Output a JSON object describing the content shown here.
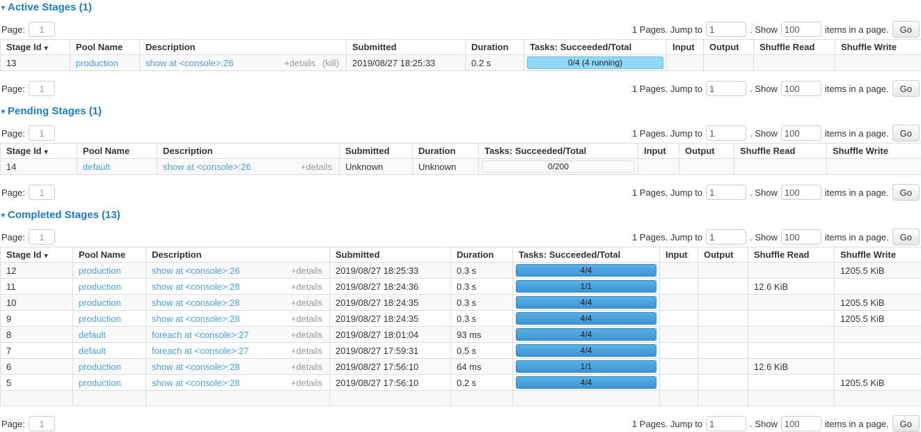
{
  "ui": {
    "caret": "▾"
  },
  "pagination": {
    "page_label": "Page:",
    "page_value": "1",
    "jump_text": "1 Pages. Jump to",
    "jump_value": "1",
    "show_text": ". Show",
    "show_value": "100",
    "items_text": "items in a page.",
    "go_label": "Go"
  },
  "column_keys": [
    "id",
    "pool",
    "description",
    "submitted",
    "duration",
    "tasks",
    "input",
    "output",
    "shuffle_read",
    "shuffle_write"
  ],
  "sections": [
    {
      "name": "active-stages",
      "title": "Active Stages (1)",
      "widths": [
        100,
        100,
        297,
        171,
        84,
        205,
        53,
        72,
        117,
        124
      ],
      "columns": [
        {
          "label": "Stage Id",
          "sort": "▾"
        },
        {
          "label": "Pool Name"
        },
        {
          "label": "Description"
        },
        {
          "label": "Submitted"
        },
        {
          "label": "Duration"
        },
        {
          "label": "Tasks: Succeeded/Total"
        },
        {
          "label": "Input"
        },
        {
          "label": "Output"
        },
        {
          "label": "Shuffle Read"
        },
        {
          "label": "Shuffle Write"
        }
      ],
      "rows": [
        {
          "id": "13",
          "pool": "production",
          "desc": "show at <console>:26",
          "details": "+details",
          "kill": "(kill)",
          "submitted": "2019/08/27 18:25:33",
          "duration": "0.2 s",
          "tasks": {
            "label": "0/4 (4 running)",
            "style": "running"
          },
          "input": "",
          "output": "",
          "shuffle_read": "",
          "shuffle_write": ""
        }
      ]
    },
    {
      "name": "pending-stages",
      "title": "Pending Stages (1)",
      "widths": [
        110,
        115,
        262,
        105,
        95,
        229,
        59,
        79,
        133,
        136
      ],
      "columns": [
        {
          "label": "Stage Id",
          "sort": "▾"
        },
        {
          "label": "Pool Name"
        },
        {
          "label": "Description"
        },
        {
          "label": "Submitted"
        },
        {
          "label": "Duration"
        },
        {
          "label": "Tasks: Succeeded/Total"
        },
        {
          "label": "Input"
        },
        {
          "label": "Output"
        },
        {
          "label": "Shuffle Read"
        },
        {
          "label": "Shuffle Write"
        }
      ],
      "rows": [
        {
          "id": "14",
          "pool": "default",
          "desc": "show at <console>:26",
          "details": "+details",
          "submitted": "Unknown",
          "duration": "Unknown",
          "tasks": {
            "label": "0/200",
            "style": "empty"
          },
          "input": "",
          "output": "",
          "shuffle_read": "",
          "shuffle_write": ""
        }
      ]
    },
    {
      "name": "completed-stages",
      "title": "Completed Stages (13)",
      "widths": [
        104,
        105,
        264,
        174,
        89,
        211,
        55,
        72,
        124,
        125
      ],
      "columns": [
        {
          "label": "Stage Id",
          "sort": "▾"
        },
        {
          "label": "Pool Name"
        },
        {
          "label": "Description"
        },
        {
          "label": "Submitted"
        },
        {
          "label": "Duration"
        },
        {
          "label": "Tasks: Succeeded/Total"
        },
        {
          "label": "Input"
        },
        {
          "label": "Output"
        },
        {
          "label": "Shuffle Read"
        },
        {
          "label": "Shuffle Write"
        }
      ],
      "rows": [
        {
          "id": "12",
          "pool": "production",
          "desc": "show at <console>:26",
          "details": "+details",
          "submitted": "2019/08/27 18:25:33",
          "duration": "0.3 s",
          "tasks": {
            "label": "4/4",
            "style": "done"
          },
          "input": "",
          "output": "",
          "shuffle_read": "",
          "shuffle_write": "1205.5 KiB"
        },
        {
          "id": "11",
          "pool": "production",
          "desc": "show at <console>:28",
          "details": "+details",
          "submitted": "2019/08/27 18:24:36",
          "duration": "0.3 s",
          "tasks": {
            "label": "1/1",
            "style": "done"
          },
          "input": "",
          "output": "",
          "shuffle_read": "12.6 KiB",
          "shuffle_write": ""
        },
        {
          "id": "10",
          "pool": "production",
          "desc": "show at <console>:28",
          "details": "+details",
          "submitted": "2019/08/27 18:24:35",
          "duration": "0.3 s",
          "tasks": {
            "label": "4/4",
            "style": "done"
          },
          "input": "",
          "output": "",
          "shuffle_read": "",
          "shuffle_write": "1205.5 KiB"
        },
        {
          "id": "9",
          "pool": "production",
          "desc": "show at <console>:28",
          "details": "+details",
          "submitted": "2019/08/27 18:24:35",
          "duration": "0.3 s",
          "tasks": {
            "label": "4/4",
            "style": "done"
          },
          "input": "",
          "output": "",
          "shuffle_read": "",
          "shuffle_write": "1205.5 KiB"
        },
        {
          "id": "8",
          "pool": "default",
          "desc": "foreach at <console>:27",
          "details": "+details",
          "submitted": "2019/08/27 18:01:04",
          "duration": "93 ms",
          "tasks": {
            "label": "4/4",
            "style": "done"
          },
          "input": "",
          "output": "",
          "shuffle_read": "",
          "shuffle_write": ""
        },
        {
          "id": "7",
          "pool": "default",
          "desc": "foreach at <console>:27",
          "details": "+details",
          "submitted": "2019/08/27 17:59:31",
          "duration": "0.5 s",
          "tasks": {
            "label": "4/4",
            "style": "done"
          },
          "input": "",
          "output": "",
          "shuffle_read": "",
          "shuffle_write": ""
        },
        {
          "id": "6",
          "pool": "production",
          "desc": "show at <console>:28",
          "details": "+details",
          "submitted": "2019/08/27 17:56:10",
          "duration": "64 ms",
          "tasks": {
            "label": "1/1",
            "style": "done"
          },
          "input": "",
          "output": "",
          "shuffle_read": "12.6 KiB",
          "shuffle_write": ""
        },
        {
          "id": "5",
          "pool": "production",
          "desc": "show at <console>:28",
          "details": "+details",
          "submitted": "2019/08/27 17:56:10",
          "duration": "0.2 s",
          "tasks": {
            "label": "4/4",
            "style": "done"
          },
          "input": "",
          "output": "",
          "shuffle_read": "",
          "shuffle_write": "1205.5 KiB"
        },
        {
          "id": "",
          "pool": "",
          "desc": null,
          "submitted": "",
          "duration": "",
          "tasks": null,
          "input": "",
          "output": "",
          "shuffle_read": "",
          "shuffle_write": ""
        }
      ]
    }
  ]
}
